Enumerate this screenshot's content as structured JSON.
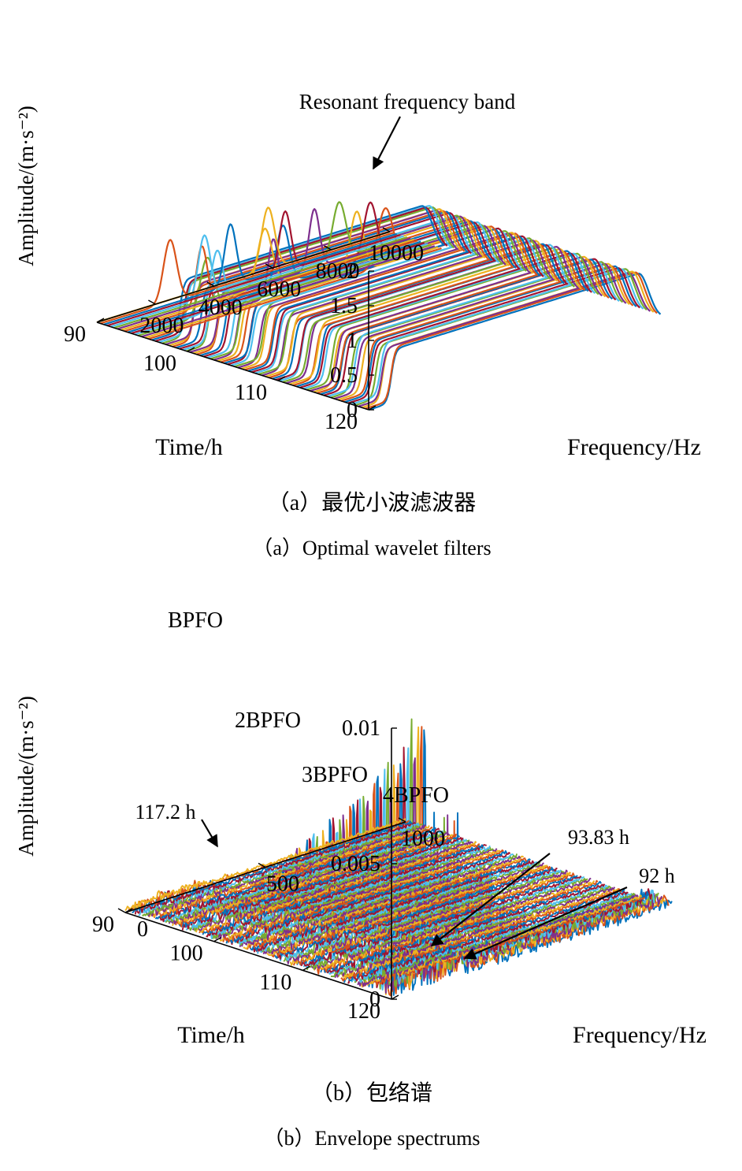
{
  "chart_data": [
    {
      "id": "a",
      "type": "waterfall-3d-line",
      "zlabel": "Amplitude/(m·s⁻²)",
      "xlabel": "Frequency/Hz",
      "ylabel": "Time/h",
      "zticks": [
        "0",
        "0.5",
        "1",
        "1.5",
        "2"
      ],
      "zlim": [
        0,
        2
      ],
      "freq_ticks": [
        "2000",
        "4000",
        "6000",
        "8000",
        "10000"
      ],
      "freq_lim": [
        0,
        10000
      ],
      "time_ticks": [
        "90",
        "100",
        "110",
        "120"
      ],
      "time_lim": [
        90,
        120
      ],
      "annotations": [
        {
          "text": "Resonant frequency band"
        }
      ],
      "series_description": {
        "count": 80,
        "early_hours": {
          "time_range": [
            90,
            96
          ],
          "peak_center_hz": [
            2300,
            8200
          ],
          "peak_amplitude": [
            0.8,
            0.92
          ]
        },
        "late_hours": {
          "time_range": [
            96,
            120
          ],
          "edge_hz": [
            700,
            1000
          ],
          "plateau_amplitude": 0.75
        }
      },
      "caption_cn": "（a）最优小波滤波器",
      "caption_en": "（a）Optimal wavelet filters"
    },
    {
      "id": "b",
      "type": "waterfall-3d-line",
      "zlabel": "Amplitude/(m·s⁻²)",
      "xlabel": "Frequency/Hz",
      "ylabel": "Time/h",
      "zticks": [
        "0",
        "0.005",
        "0.01"
      ],
      "zlim": [
        0,
        0.01
      ],
      "freq_ticks": [
        "0",
        "500",
        "1000"
      ],
      "freq_lim": [
        0,
        1000
      ],
      "time_ticks": [
        "90",
        "100",
        "110",
        "120"
      ],
      "time_lim": [
        90,
        120
      ],
      "harmonics": [
        {
          "label": "BPFO",
          "freq_hz": 118,
          "max_amplitude": 0.0095
        },
        {
          "label": "2BPFO",
          "freq_hz": 236,
          "max_amplitude": 0.0058
        },
        {
          "label": "3BPFO",
          "freq_hz": 354,
          "max_amplitude": 0.0038
        },
        {
          "label": "4BPFO",
          "freq_hz": 472,
          "max_amplitude": 0.0018
        }
      ],
      "annotations": [
        {
          "text": "117.2 h"
        },
        {
          "text": "93.83 h"
        },
        {
          "text": "92 h"
        }
      ],
      "fault_onset_h": 93.83,
      "caption_cn": "（b）包络谱",
      "caption_en": "（b）Envelope spectrums"
    }
  ],
  "palette": [
    "#0072BD",
    "#D95319",
    "#EDB120",
    "#7E2F8E",
    "#77AC30",
    "#4DBEEE",
    "#A2142F"
  ]
}
